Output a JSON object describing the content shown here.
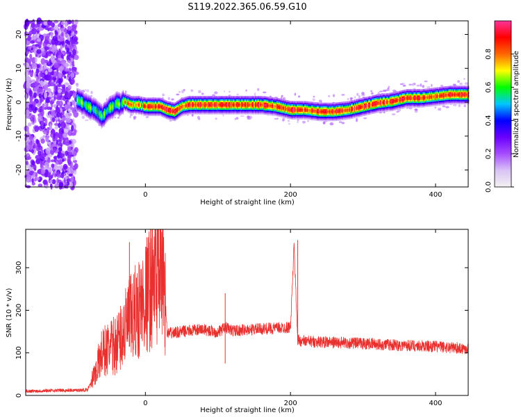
{
  "title": "S119.2022.365.06.59.G10",
  "colors": {
    "snr_line": "#e8302e",
    "colormap": [
      "#f2f2f2",
      "#d9c2f5",
      "#a64dff",
      "#6a00ff",
      "#0000ff",
      "#00c8ff",
      "#00ff00",
      "#ffff00",
      "#ff6600",
      "#ff0000",
      "#ff3399"
    ]
  },
  "chart_data": [
    {
      "type": "heatmap",
      "xlabel": "Height of straight line (km)",
      "ylabel": "Frequency (Hz)",
      "xlim": [
        -165,
        445
      ],
      "ylim": [
        -25,
        24
      ],
      "xticks": [
        0,
        200,
        400
      ],
      "yticks": [
        -20,
        -10,
        0,
        10,
        20
      ],
      "ridge": [
        [
          -95,
          1
        ],
        [
          -90,
          0.5
        ],
        [
          -80,
          -1
        ],
        [
          -70,
          -2
        ],
        [
          -60,
          -4
        ],
        [
          -50,
          -1.5
        ],
        [
          -45,
          -1
        ],
        [
          -40,
          0
        ],
        [
          -35,
          -0.5
        ],
        [
          -30,
          0.5
        ],
        [
          -20,
          -0.5
        ],
        [
          -10,
          -0.5
        ],
        [
          0,
          -1
        ],
        [
          10,
          -1
        ],
        [
          20,
          -1
        ],
        [
          30,
          -2
        ],
        [
          40,
          -2.5
        ],
        [
          50,
          -1
        ],
        [
          60,
          -0.5
        ],
        [
          80,
          -0.5
        ],
        [
          120,
          -0.5
        ],
        [
          160,
          -0.5
        ],
        [
          180,
          -1
        ],
        [
          200,
          -2
        ],
        [
          220,
          -2
        ],
        [
          240,
          -2.5
        ],
        [
          260,
          -2.5
        ],
        [
          280,
          -2
        ],
        [
          300,
          -1
        ],
        [
          320,
          0
        ],
        [
          340,
          0.5
        ],
        [
          360,
          1.5
        ],
        [
          380,
          1.5
        ],
        [
          400,
          2
        ],
        [
          420,
          2.5
        ],
        [
          445,
          2.5
        ]
      ],
      "colorbar": {
        "label": "Normalized spectral amplitude",
        "range": [
          0.0,
          1.0
        ],
        "ticks": [
          "0.0",
          "0.2",
          "0.4",
          "0.6",
          "0.8"
        ]
      }
    },
    {
      "type": "line",
      "xlabel": "Height of straight line (km)",
      "ylabel": "SNR (10 * v/v)",
      "xlim": [
        -165,
        445
      ],
      "ylim": [
        0,
        390
      ],
      "xticks": [
        0,
        200,
        400
      ],
      "yticks": [
        0,
        100,
        200,
        300
      ],
      "series": [
        {
          "x": [
            -165,
            -140,
            -120,
            -100,
            -80,
            -70,
            -60,
            -50,
            -40,
            -30,
            -20,
            -10,
            0,
            10,
            20,
            25,
            30,
            50,
            80,
            100,
            110,
            120,
            150,
            180,
            200,
            205,
            210,
            215,
            250,
            300,
            350,
            400,
            445
          ],
          "y": [
            10,
            11,
            12,
            12,
            13,
            50,
            100,
            110,
            120,
            150,
            180,
            200,
            230,
            270,
            290,
            300,
            145,
            150,
            155,
            148,
            160,
            152,
            155,
            158,
            160,
            350,
            130,
            128,
            125,
            122,
            118,
            115,
            110
          ]
        }
      ],
      "peaks": [
        {
          "x": -22,
          "y": 360
        },
        {
          "x": 7,
          "y": 392
        },
        {
          "x": 110,
          "y": 240
        },
        {
          "x": 210,
          "y": 365
        },
        {
          "x": 110,
          "y": 75
        }
      ]
    }
  ]
}
